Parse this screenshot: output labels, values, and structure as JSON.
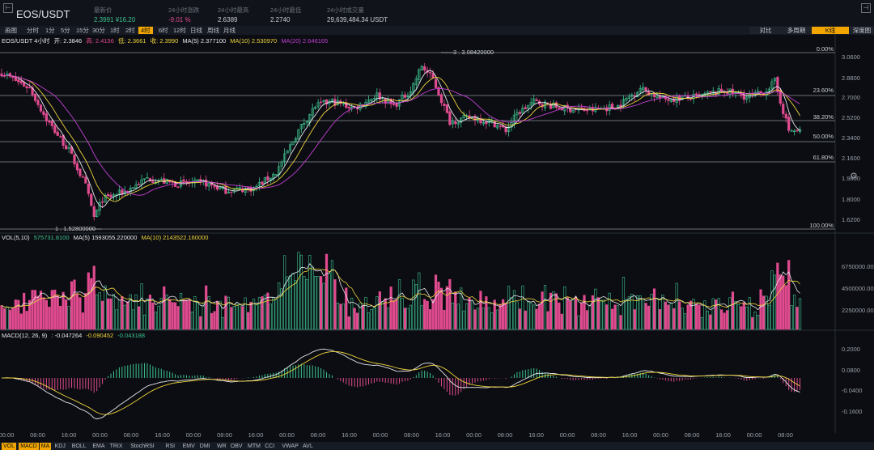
{
  "header": {
    "symbol": "EOS/USDT",
    "stats": [
      {
        "label": "最新价",
        "value": "2.3991 ¥16.20",
        "tone": "up"
      },
      {
        "label": "24小时涨跌",
        "value": "-9.01 %",
        "tone": "down"
      },
      {
        "label": "24小时最高",
        "value": "2.6389",
        "tone": "neutral"
      },
      {
        "label": "24小时最低",
        "value": "2.2740",
        "tone": "neutral"
      },
      {
        "label": "24小时成交量",
        "value": "29,639,484.34 USDT",
        "tone": "neutral"
      }
    ]
  },
  "tabs": {
    "intervals": [
      "画图",
      "分时",
      "1分",
      "5分",
      "15分",
      "30分",
      "1时",
      "2时",
      "4时",
      "6时",
      "12时",
      "日线",
      "周线",
      "月线"
    ],
    "active_interval": "4时",
    "right": [
      "对比",
      "多周期",
      "K线",
      "深度图"
    ],
    "active_right": "K线"
  },
  "legend": {
    "price": {
      "symbol": "EOS/USDT 4小时",
      "open": "开: 2.3846",
      "high": "高: 2.4156",
      "low": "低: 2.3661",
      "close": "收: 2.3990",
      "ma5": "MA(5) 2.377100",
      "ma10": "MA(10) 2.530970",
      "ma20": "MA(20) 2.646165"
    },
    "vol": {
      "label": "VOL(5,10)",
      "vol": "575731.8100",
      "ma5": "MA(5) 1593055.220000",
      "ma10": "MA(10) 2143522.160000"
    },
    "macd": {
      "label": "MACD(12, 26, 9)",
      "dif": ": -0.047264",
      "dea": "-0.090452",
      "hist": "-0.043188"
    }
  },
  "price_axis": [
    "3.0600",
    "2.8800",
    "2.7000",
    "2.5200",
    "2.3400",
    "2.1600",
    "1.9800",
    "1.8000",
    "1.6200"
  ],
  "vol_axis": [
    "6750000.00",
    "4500000.00",
    "2250000.00"
  ],
  "macd_axis": [
    "0.2000",
    "0.0800",
    "-0.0400",
    "-0.1600"
  ],
  "fib_levels": [
    "0.00%",
    "23.60%",
    "38.20%",
    "50.00%",
    "61.80%",
    "100.00%"
  ],
  "price_marks": {
    "high": "3.08420000",
    "low": "1.52800000"
  },
  "time_axis": [
    "00:00",
    "08:00",
    "16:00",
    "00:00",
    "08:00",
    "16:00",
    "00:00",
    "08:00",
    "16:00",
    "00:00",
    "08:00",
    "16:00",
    "00:00",
    "08:00",
    "16:00",
    "00:00",
    "08:00",
    "16:00",
    "00:00",
    "08:00",
    "16:00",
    "00:00",
    "08:00",
    "16:00",
    "00:00",
    "08:00"
  ],
  "indicator_tabs": [
    "VOL",
    "MACD",
    "MA",
    "KDJ",
    "BOLL",
    "EMA",
    "TRIX",
    "StochRSI",
    "RSI",
    "EMV",
    "DMI",
    "WR",
    "OBV",
    "MTM",
    "CCI",
    "VWAP",
    "AVL"
  ],
  "active_indicators": [
    "VOL",
    "MACD",
    "MA"
  ],
  "colors": {
    "up": "#3ec28f",
    "down": "#e04b8f",
    "ma5": "#e6e8ec",
    "ma10": "#f0d43a",
    "ma20": "#c43fd2",
    "accent": "#f0a500"
  },
  "chart_data": {
    "type": "candlestick",
    "price_keypoints": [
      [
        0,
        2.92
      ],
      [
        10,
        2.78
      ],
      [
        16,
        2.5
      ],
      [
        24,
        2.22
      ],
      [
        30,
        1.9
      ],
      [
        33,
        1.62
      ],
      [
        36,
        1.78
      ],
      [
        44,
        1.85
      ],
      [
        52,
        1.97
      ],
      [
        62,
        1.92
      ],
      [
        72,
        1.93
      ],
      [
        80,
        1.86
      ],
      [
        90,
        1.88
      ],
      [
        98,
        2.02
      ],
      [
        106,
        2.4
      ],
      [
        112,
        2.62
      ],
      [
        118,
        2.66
      ],
      [
        126,
        2.6
      ],
      [
        134,
        2.72
      ],
      [
        140,
        2.62
      ],
      [
        146,
        2.76
      ],
      [
        150,
        2.98
      ],
      [
        154,
        2.86
      ],
      [
        160,
        2.48
      ],
      [
        168,
        2.52
      ],
      [
        176,
        2.46
      ],
      [
        180,
        2.4
      ],
      [
        184,
        2.55
      ],
      [
        190,
        2.66
      ],
      [
        200,
        2.6
      ],
      [
        210,
        2.58
      ],
      [
        220,
        2.62
      ],
      [
        228,
        2.78
      ],
      [
        236,
        2.68
      ],
      [
        248,
        2.7
      ],
      [
        258,
        2.76
      ],
      [
        266,
        2.7
      ],
      [
        272,
        2.74
      ],
      [
        276,
        2.84
      ],
      [
        281,
        2.4
      ],
      [
        285,
        2.39
      ]
    ]
  }
}
